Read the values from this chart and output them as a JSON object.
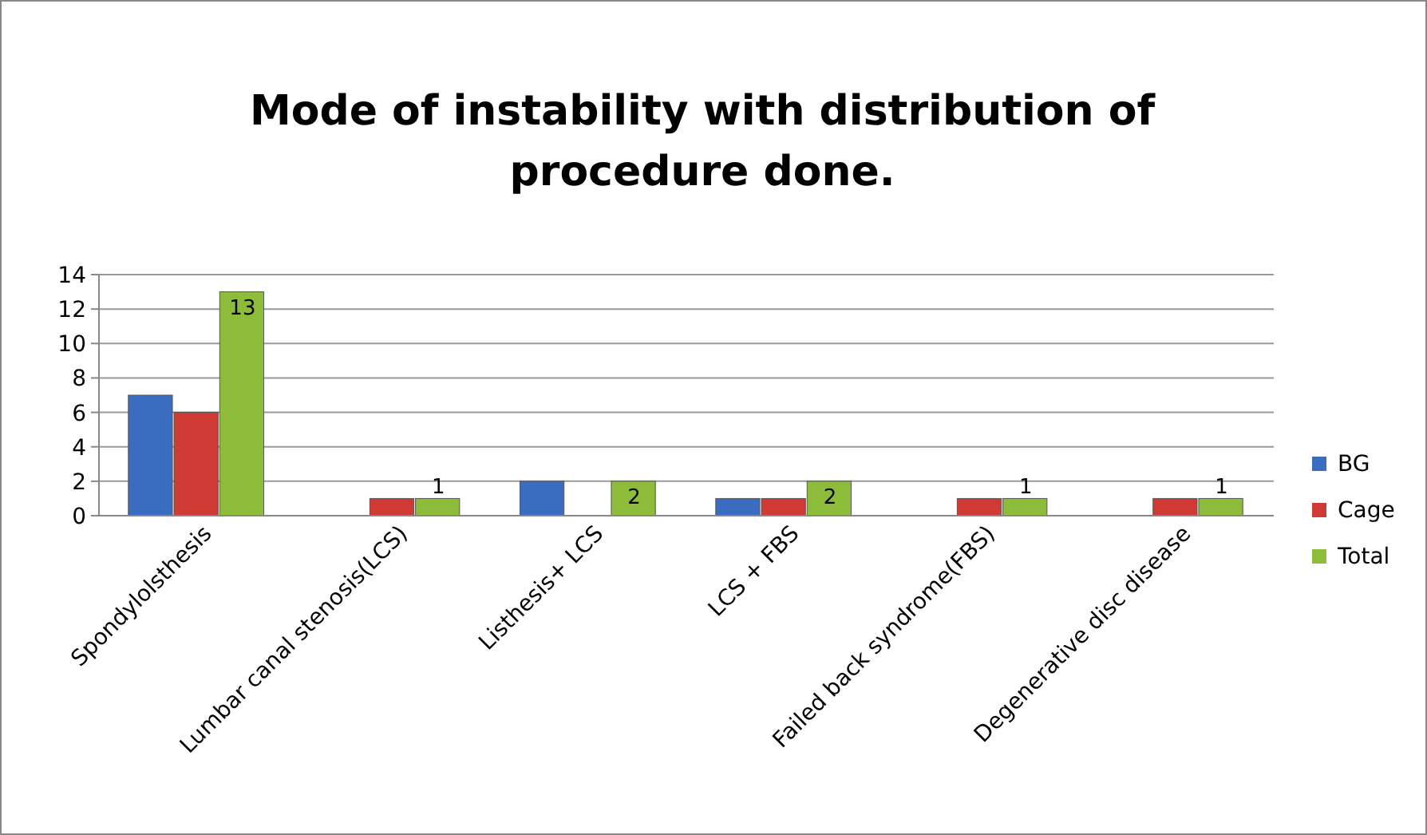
{
  "chart_data": {
    "type": "bar",
    "title": "Mode of instability with distribution of procedure done.",
    "categories": [
      "Spondylolsthesis",
      "Lumbar canal stenosis(LCS)",
      "Listhesis+ LCS",
      "LCS + FBS",
      "Failed back syndrome(FBS)",
      "Degenerative disc disease"
    ],
    "series": [
      {
        "name": "BG",
        "color": "#3a6cc0",
        "values": [
          7,
          0,
          2,
          1,
          0,
          0
        ]
      },
      {
        "name": "Cage",
        "color": "#cf3a34",
        "values": [
          6,
          1,
          0,
          1,
          1,
          1
        ]
      },
      {
        "name": "Total",
        "color": "#8cbc3a",
        "values": [
          13,
          1,
          2,
          2,
          1,
          1
        ],
        "value_labels": [
          "13",
          "1",
          "2",
          "2",
          "1",
          "1"
        ]
      }
    ],
    "ylim": [
      0,
      14
    ],
    "yticks": [
      0,
      2,
      4,
      6,
      8,
      10,
      12,
      14
    ],
    "grid": "y",
    "legend": "right"
  }
}
